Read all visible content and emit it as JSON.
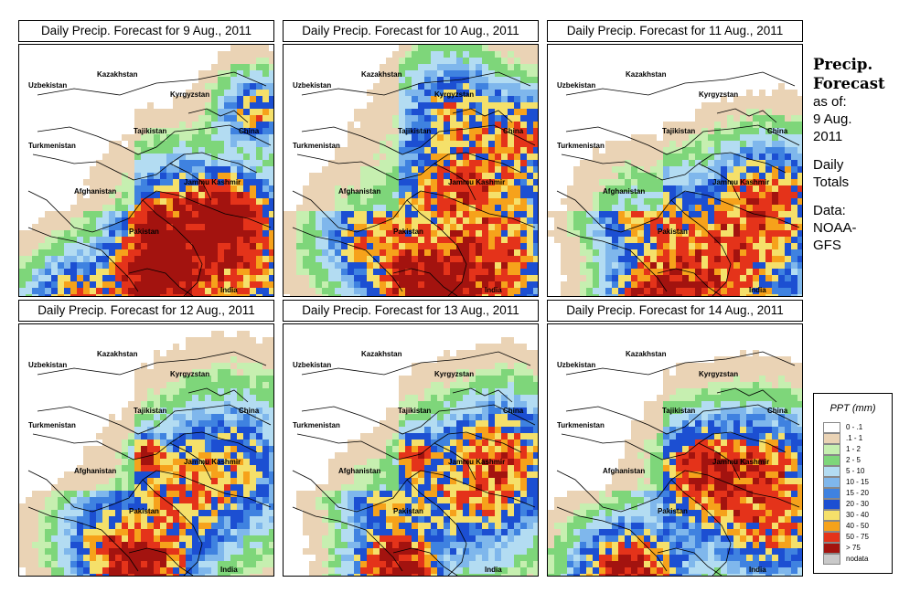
{
  "panels": [
    {
      "title": "Daily Precip. Forecast for  9 Aug., 2011"
    },
    {
      "title": "Daily Precip. Forecast for  10 Aug., 2011"
    },
    {
      "title": "Daily Precip. Forecast for  11 Aug., 2011"
    },
    {
      "title": "Daily Precip. Forecast for  12 Aug., 2011"
    },
    {
      "title": "Daily Precip. Forecast for  13 Aug., 2011"
    },
    {
      "title": "Daily Precip. Forecast for  14 Aug., 2011"
    }
  ],
  "map_labels": {
    "uzbekistan": "Uzbekistan",
    "kazakhstan": "Kazakhstan",
    "kyrgyzstan": "Kyrgyzstan",
    "tajikistan": "Tajikistan",
    "china": "China",
    "turkmenistan": "Turkmenistan",
    "jammu_kashmir": "Jammu Kashmir",
    "afghanistan": "Afghanistan",
    "pakistan": "Pakistan",
    "india": "India"
  },
  "info": {
    "title_line1": "Precip.",
    "title_line2": "Forecast",
    "as_of": "as of:",
    "date_line1": "9 Aug.",
    "date_line2": "2011",
    "daily": "Daily",
    "totals": "Totals",
    "data_label": "Data:",
    "data_line1": "NOAA-",
    "data_line2": "GFS"
  },
  "legend": {
    "title": "PPT (mm)",
    "items": [
      {
        "label": "0 - .1",
        "color": "#ffffff"
      },
      {
        "label": ".1 - 1",
        "color": "#ead3b5"
      },
      {
        "label": "1 - 2",
        "color": "#c6efb0"
      },
      {
        "label": "2 - 5",
        "color": "#7ed67a"
      },
      {
        "label": "5 - 10",
        "color": "#b3dcf2"
      },
      {
        "label": "10 - 15",
        "color": "#7fb7ec"
      },
      {
        "label": "15 - 20",
        "color": "#3f82e0"
      },
      {
        "label": "20 - 30",
        "color": "#1c4fd2"
      },
      {
        "label": "30 - 40",
        "color": "#f5e06a"
      },
      {
        "label": "40 - 50",
        "color": "#f6a21b"
      },
      {
        "label": "50 - 75",
        "color": "#e4331a"
      },
      {
        "label": "> 75",
        "color": "#a3130f"
      },
      {
        "label": "nodata",
        "color": "#c9c9c9"
      }
    ]
  }
}
